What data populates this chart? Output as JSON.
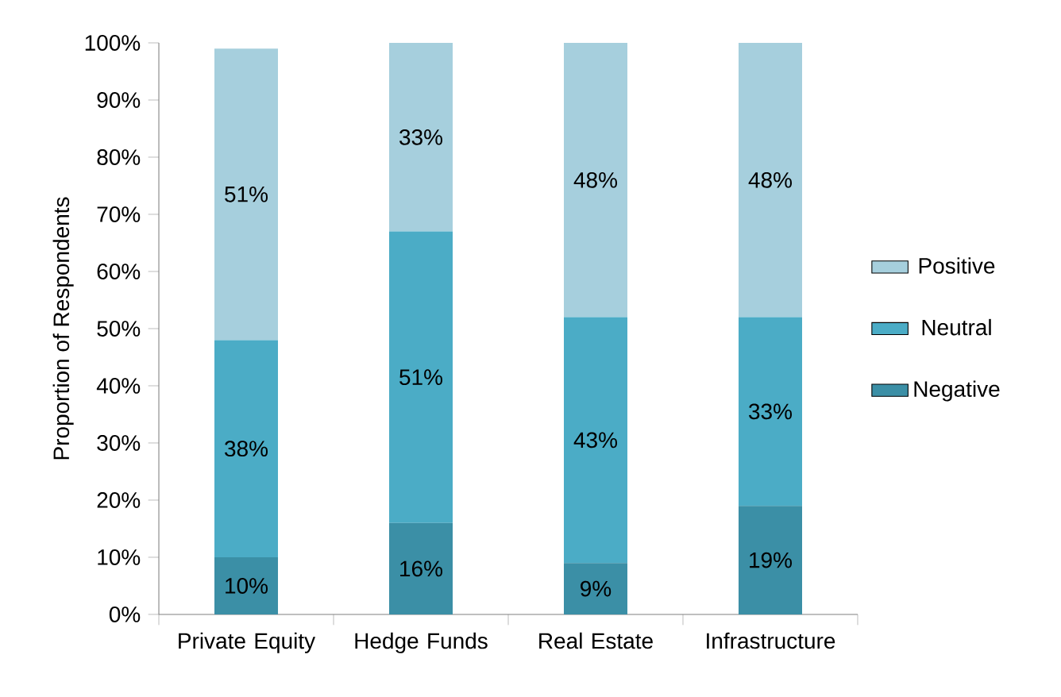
{
  "chart_data": {
    "type": "bar",
    "stacked": true,
    "ylabel": "Proportion of Respondents",
    "categories": [
      "Private Equity",
      "Hedge Funds",
      "Real Estate",
      "Infrastructure"
    ],
    "series": [
      {
        "name": "Negative",
        "color": "#3b8fa6",
        "values": [
          10,
          16,
          9,
          19
        ],
        "value_labels": [
          "10%",
          "16%",
          "9%",
          "19%"
        ]
      },
      {
        "name": "Neutral",
        "color": "#4bacc6",
        "values": [
          38,
          51,
          43,
          33
        ],
        "value_labels": [
          "38%",
          "51%",
          "43%",
          "33%"
        ]
      },
      {
        "name": "Positive",
        "color": "#a6cfdd",
        "values": [
          51,
          33,
          48,
          48
        ],
        "value_labels": [
          "51%",
          "33%",
          "48%",
          "48%"
        ]
      }
    ],
    "ylim": [
      0,
      100
    ],
    "yticks": [
      {
        "value": 0,
        "label": "0%"
      },
      {
        "value": 10,
        "label": "10%"
      },
      {
        "value": 20,
        "label": "20%"
      },
      {
        "value": 30,
        "label": "30%"
      },
      {
        "value": 40,
        "label": "40%"
      },
      {
        "value": 50,
        "label": "50%"
      },
      {
        "value": 60,
        "label": "60%"
      },
      {
        "value": 70,
        "label": "70%"
      },
      {
        "value": 80,
        "label": "80%"
      },
      {
        "value": 90,
        "label": "90%"
      },
      {
        "value": 100,
        "label": "100%"
      }
    ],
    "legend": "right"
  }
}
